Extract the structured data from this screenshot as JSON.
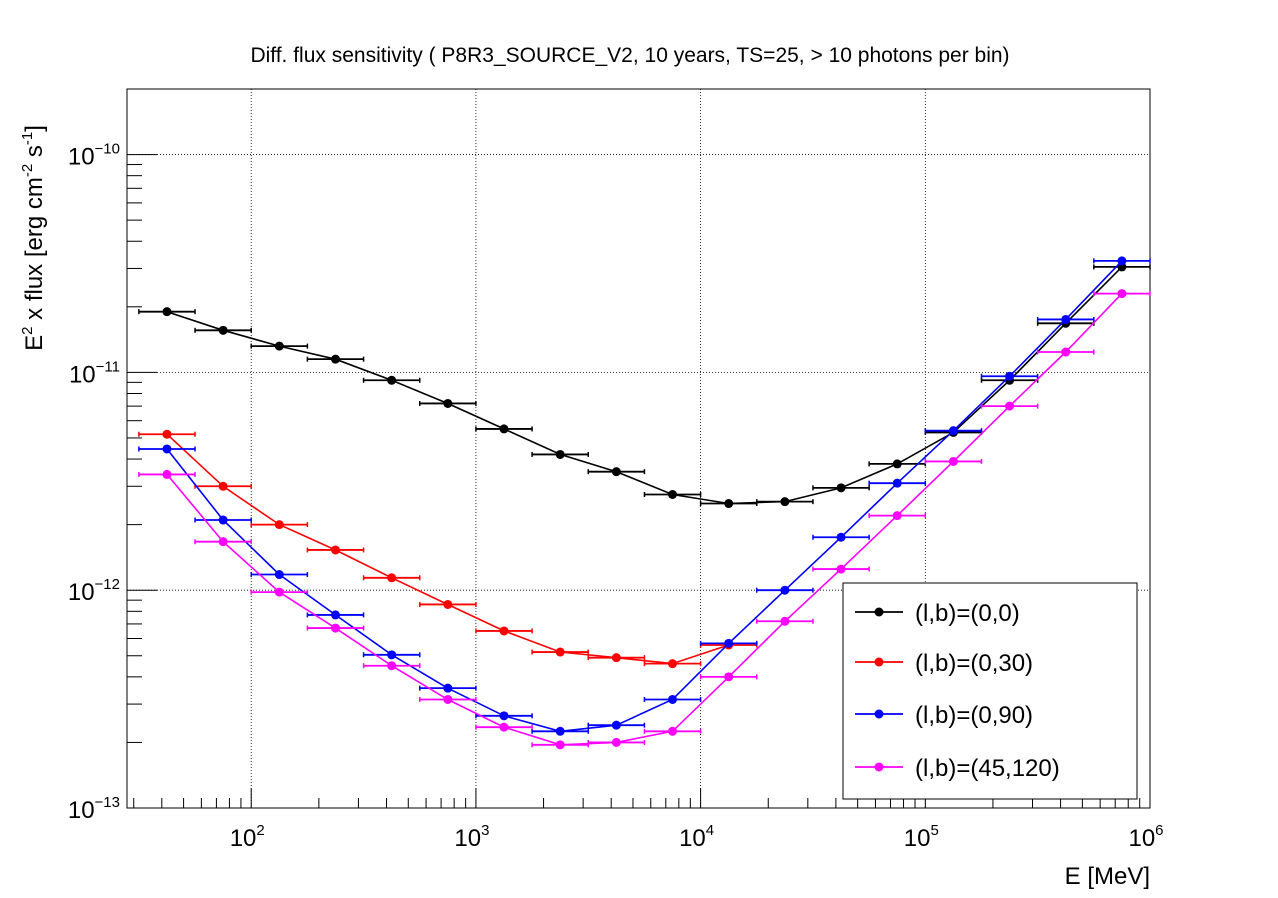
{
  "chart_data": {
    "type": "scatter",
    "title": "Diff. flux sensitivity ( P8R3_SOURCE_V2, 10 years, TS=25, > 10 photons per bin)",
    "xlabel": "E [MeV]",
    "ylabel": "E^2 x flux [erg cm^-2 s^-1]",
    "ylabel_parts": {
      "p1": "E",
      "p1_sup": "2",
      "p2": " x flux [erg cm",
      "p2_sup": "-2",
      "p3": " s",
      "p3_sup": "-1",
      "p4": "]"
    },
    "x_scale": "log",
    "y_scale": "log",
    "xlim": [
      28,
      1000000
    ],
    "ylim": [
      1e-13,
      2e-10
    ],
    "grid": true,
    "legend_position": "bottom-right",
    "x_ticks": [
      {
        "value": 100,
        "base": "10",
        "exp": "2"
      },
      {
        "value": 1000,
        "base": "10",
        "exp": "3"
      },
      {
        "value": 10000,
        "base": "10",
        "exp": "4"
      },
      {
        "value": 100000,
        "base": "10",
        "exp": "5"
      },
      {
        "value": 1000000,
        "base": "10",
        "exp": "6"
      }
    ],
    "y_ticks": [
      {
        "value": 1e-13,
        "base": "10",
        "exp": "−13"
      },
      {
        "value": 1e-12,
        "base": "10",
        "exp": "−12"
      },
      {
        "value": 1e-11,
        "base": "10",
        "exp": "−11"
      },
      {
        "value": 1e-10,
        "base": "10",
        "exp": "−10"
      }
    ],
    "x": [
      42.17,
      74.99,
      133.35,
      237.14,
      421.7,
      749.89,
      1333.5,
      2371.4,
      4217.0,
      7498.9,
      13335,
      23714,
      42170,
      74989,
      133352,
      237137,
      421697,
      749894
    ],
    "x_lo": [
      31.62,
      56.23,
      100,
      177.83,
      316.23,
      562.34,
      1000,
      1778.3,
      3162.3,
      5623.4,
      10000,
      17783,
      31623,
      56234,
      100000,
      177828,
      316228,
      562341
    ],
    "x_hi": [
      56.23,
      100,
      177.83,
      316.23,
      562.34,
      1000,
      1778.3,
      3162.3,
      5623.4,
      10000,
      17783,
      31623,
      56234,
      100000,
      177828,
      316228,
      562341,
      1000000
    ],
    "series": [
      {
        "name": "(l,b)=(0,0)",
        "color": "#000000",
        "values": [
          1.9e-11,
          1.56e-11,
          1.32e-11,
          1.15e-11,
          9.2e-12,
          7.2e-12,
          5.5e-12,
          4.2e-12,
          3.5e-12,
          2.75e-12,
          2.5e-12,
          2.55e-12,
          2.95e-12,
          3.8e-12,
          5.3e-12,
          9.2e-12,
          1.68e-11,
          3.05e-11
        ]
      },
      {
        "name": "(l,b)=(0,30)",
        "color": "#ff0000",
        "values": [
          5.2e-12,
          3e-12,
          2e-12,
          1.53e-12,
          1.14e-12,
          8.6e-13,
          6.5e-13,
          5.2e-13,
          4.9e-13,
          4.6e-13,
          5.6e-13,
          null,
          null,
          null,
          null,
          null,
          null,
          null
        ]
      },
      {
        "name": "(l,b)=(0,90)",
        "color": "#0000ff",
        "values": [
          4.45e-12,
          2.1e-12,
          1.18e-12,
          7.7e-13,
          5.05e-13,
          3.55e-13,
          2.65e-13,
          2.25e-13,
          2.4e-13,
          3.15e-13,
          5.7e-13,
          1e-12,
          1.75e-12,
          3.1e-12,
          5.4e-12,
          9.6e-12,
          1.75e-11,
          3.25e-11
        ]
      },
      {
        "name": "(l,b)=(45,120)",
        "color": "#ff00ff",
        "values": [
          3.4e-12,
          1.67e-12,
          9.8e-13,
          6.7e-13,
          4.5e-13,
          3.15e-13,
          2.35e-13,
          1.95e-13,
          2e-13,
          2.25e-13,
          4e-13,
          7.2e-13,
          1.25e-12,
          2.2e-12,
          3.9e-12,
          7e-12,
          1.24e-11,
          2.3e-11
        ]
      }
    ]
  }
}
